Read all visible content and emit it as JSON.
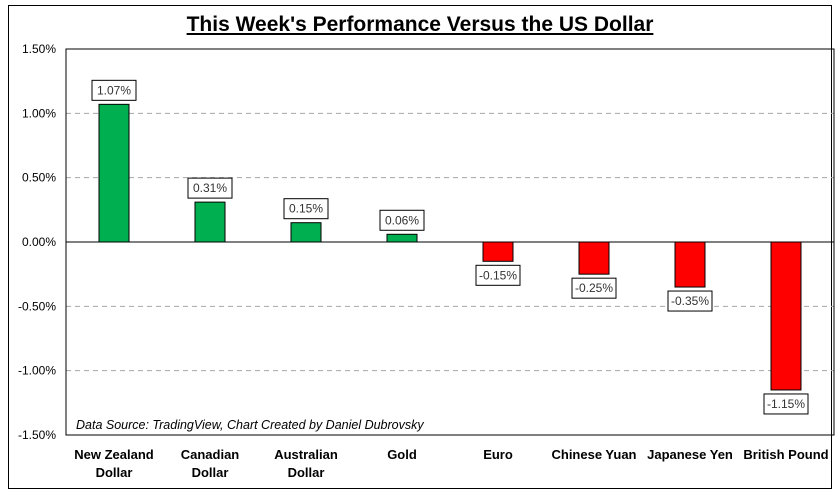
{
  "chart_data": {
    "type": "bar",
    "title": "This Week's Performance Versus the US Dollar",
    "xlabel": "",
    "ylabel": "",
    "categories": [
      [
        "New Zealand",
        "Dollar"
      ],
      [
        "Canadian",
        "Dollar"
      ],
      [
        "Australian",
        "Dollar"
      ],
      [
        "Gold"
      ],
      [
        "Euro"
      ],
      [
        "Chinese Yuan"
      ],
      [
        "Japanese Yen"
      ],
      [
        "British Pound"
      ]
    ],
    "values": [
      1.07,
      0.31,
      0.15,
      0.06,
      -0.15,
      -0.25,
      -0.35,
      -1.15
    ],
    "data_labels": [
      "1.07%",
      "0.31%",
      "0.15%",
      "0.06%",
      "-0.15%",
      "-0.25%",
      "-0.35%",
      "-1.15%"
    ],
    "ylim": [
      -1.5,
      1.5
    ],
    "yticks": [
      1.5,
      1.0,
      0.5,
      0.0,
      -0.5,
      -1.0,
      -1.5
    ],
    "ytick_labels": [
      "1.50%",
      "1.00%",
      "0.50%",
      "0.00%",
      "-0.50%",
      "-1.00%",
      "-1.50%"
    ],
    "grid": true,
    "legend": "none",
    "colors": {
      "positive": "#00b050",
      "negative": "#ff0000"
    },
    "annotation": "Data Source: TradingView, Chart Created by Daniel Dubrovsky"
  }
}
